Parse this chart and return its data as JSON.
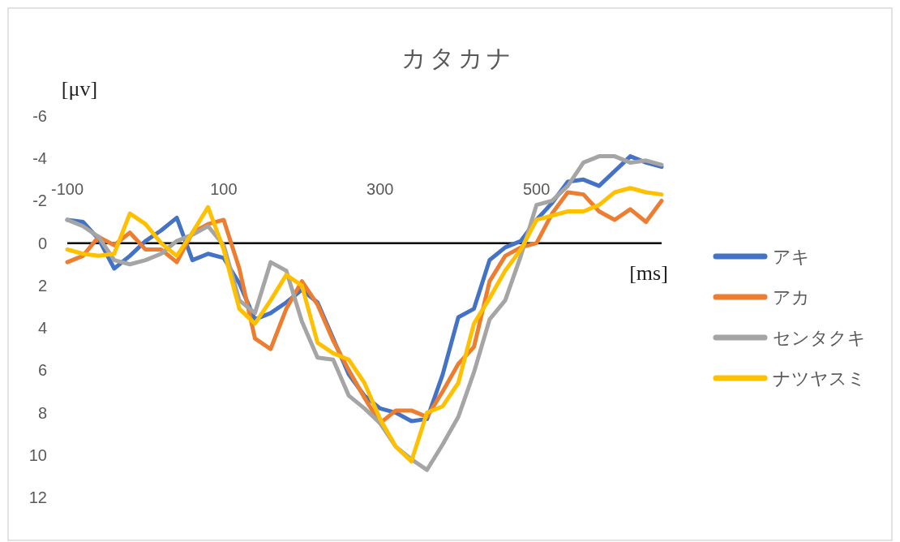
{
  "chart_data": {
    "type": "line",
    "title": "カタカナ",
    "xlabel": "[ms]",
    "ylabel": "[μv]",
    "x": [
      -100,
      -80,
      -60,
      -40,
      -20,
      0,
      20,
      40,
      60,
      80,
      100,
      120,
      140,
      160,
      180,
      200,
      220,
      240,
      260,
      280,
      300,
      320,
      340,
      360,
      380,
      400,
      420,
      440,
      460,
      480,
      500,
      520,
      540,
      560,
      580,
      600,
      620,
      640,
      660
    ],
    "xlim": [
      -100,
      660
    ],
    "xticks": [
      -100,
      100,
      300,
      500
    ],
    "ylim": [
      12,
      -6
    ],
    "yticks": [
      -6,
      -4,
      -2,
      0,
      2,
      4,
      6,
      8,
      10,
      12
    ],
    "legend": "right",
    "line_style": "solid",
    "series": [
      {
        "name": "アキ",
        "color": "#4472c4",
        "values": [
          -1.1,
          -1.0,
          -0.2,
          1.2,
          0.6,
          -0.1,
          -0.6,
          -1.2,
          0.8,
          0.5,
          0.7,
          1.9,
          3.6,
          3.3,
          2.8,
          2.2,
          2.8,
          4.5,
          6.2,
          7.2,
          7.8,
          8.0,
          8.4,
          8.3,
          6.2,
          3.5,
          3.1,
          0.8,
          0.2,
          -0.1,
          -1.1,
          -1.9,
          -2.9,
          -3.0,
          -2.7,
          -3.4,
          -4.1,
          -3.8,
          -3.6
        ]
      },
      {
        "name": "アカ",
        "color": "#ed7d31",
        "values": [
          0.9,
          0.6,
          -0.3,
          0.1,
          -0.5,
          0.3,
          0.3,
          0.9,
          -0.5,
          -0.9,
          -1.1,
          1.2,
          4.5,
          5.0,
          3.1,
          1.8,
          2.9,
          4.6,
          6.0,
          7.3,
          8.5,
          7.9,
          7.9,
          8.2,
          7.0,
          5.7,
          4.9,
          1.8,
          0.6,
          0.2,
          0.0,
          -1.4,
          -2.4,
          -2.3,
          -1.5,
          -1.1,
          -1.6,
          -1.0,
          -2.0
        ]
      },
      {
        "name": "センタクキ",
        "color": "#a5a5a5",
        "values": [
          -1.1,
          -0.8,
          -0.3,
          0.8,
          1.0,
          0.8,
          0.5,
          -0.1,
          -0.4,
          -0.8,
          0.1,
          2.7,
          3.3,
          0.9,
          1.3,
          3.7,
          5.4,
          5.5,
          7.2,
          7.8,
          8.5,
          9.6,
          10.2,
          10.7,
          9.5,
          8.2,
          6.1,
          3.6,
          2.7,
          0.6,
          -1.8,
          -2.0,
          -2.7,
          -3.8,
          -4.1,
          -4.1,
          -3.8,
          -3.9,
          -3.7
        ]
      },
      {
        "name": "ナツヤスミ",
        "color": "#ffc000",
        "values": [
          0.3,
          0.5,
          0.6,
          0.5,
          -1.4,
          -0.9,
          0.0,
          0.6,
          -0.5,
          -1.7,
          0.3,
          3.1,
          3.8,
          2.7,
          1.5,
          2.0,
          4.7,
          5.2,
          5.5,
          6.6,
          8.3,
          9.6,
          10.3,
          8.0,
          7.7,
          6.6,
          3.8,
          2.6,
          1.3,
          0.3,
          -1.1,
          -1.3,
          -1.5,
          -1.5,
          -1.8,
          -2.4,
          -2.6,
          -2.4,
          -2.3
        ]
      }
    ]
  }
}
